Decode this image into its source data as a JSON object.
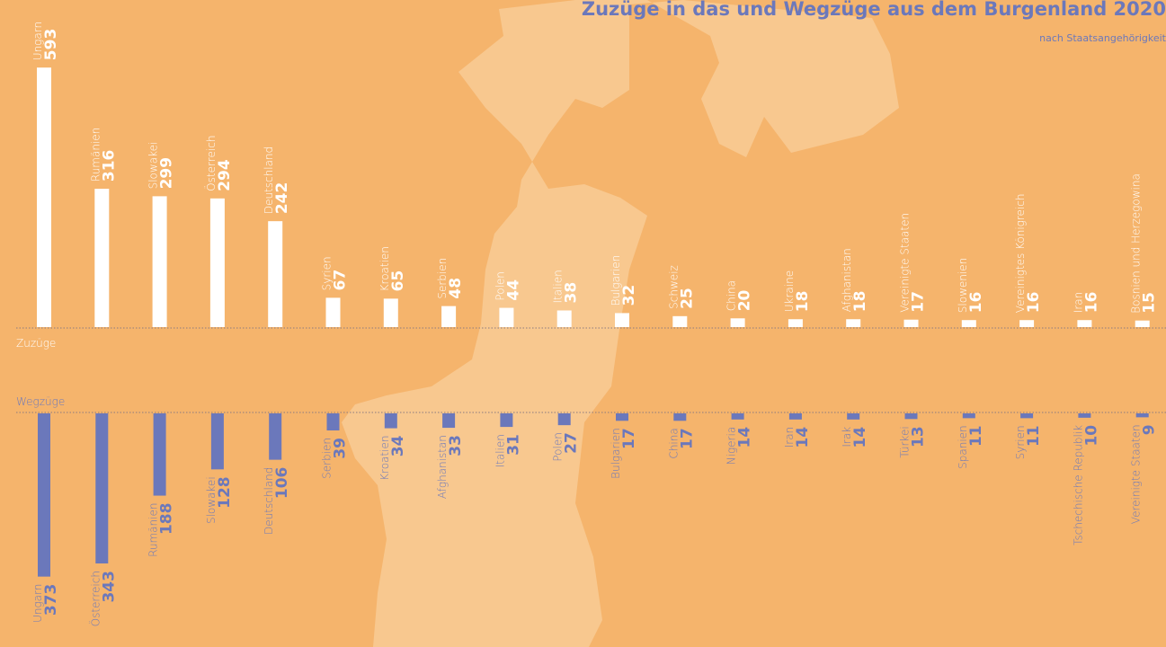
{
  "chart_data": {
    "type": "bar",
    "title": "Zuzüge in das und Wegzüge aus dem Burgenland 2020",
    "subtitle": "nach Staatsangehörigkeit",
    "series": [
      {
        "name": "Zuzüge",
        "color": "#ffffff",
        "categories": [
          "Ungarn",
          "Rumänien",
          "Slowakei",
          "Österreich",
          "Deutschland",
          "Syrien",
          "Kroatien",
          "Serbien",
          "Polen",
          "Italien",
          "Bulgarien",
          "Schweiz",
          "China",
          "Ukraine",
          "Afghanistan",
          "Vereinigte Staaten",
          "Slowenien",
          "Vereinigtes Königreich",
          "Iran",
          "Bosnien und Herzegowina"
        ],
        "values": [
          593,
          316,
          299,
          294,
          242,
          67,
          65,
          48,
          44,
          38,
          32,
          25,
          20,
          18,
          18,
          17,
          16,
          16,
          16,
          15
        ]
      },
      {
        "name": "Wegzüge",
        "color": "#6b78bb",
        "categories": [
          "Ungarn",
          "Österreich",
          "Rumänien",
          "Slowakei",
          "Deutschland",
          "Serbien",
          "Kroatien",
          "Afghanistan",
          "Italien",
          "Polen",
          "Bulgarien",
          "China",
          "Nigeria",
          "Iran",
          "Irak",
          "Türkei",
          "Spanien",
          "Syrien",
          "Tschechische Republik",
          "Vereinigte Staaten"
        ],
        "values": [
          373,
          343,
          188,
          128,
          106,
          39,
          34,
          33,
          31,
          27,
          17,
          17,
          14,
          14,
          14,
          13,
          11,
          11,
          10,
          9
        ]
      }
    ]
  }
}
